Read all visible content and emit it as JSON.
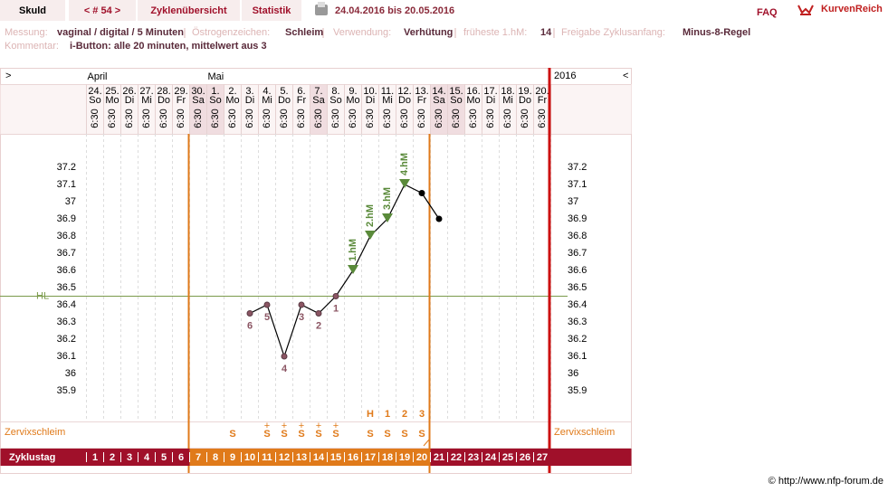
{
  "header": {
    "name": "Skuld",
    "cycle": "< # 54 >",
    "tabs": [
      "Zyklenübersicht",
      "Statistik"
    ],
    "date_range": "24.04.2016 bis 20.05.2016",
    "faq": "FAQ",
    "brand": "KurvenReich"
  },
  "info": {
    "fields": [
      {
        "label": "Messung:",
        "value": "vaginal / digital / 5 Minuten"
      },
      {
        "label": "Östrogenzeichen:",
        "value": "Schleim"
      },
      {
        "label": "Verwendung:",
        "value": "Verhütung"
      },
      {
        "label": "früheste 1.hM:",
        "value": "14"
      },
      {
        "label": "Freigabe Zyklusanfang:",
        "value": "Minus-8-Regel"
      }
    ],
    "comment": {
      "label": "Kommentar:",
      "value": "i-Button: alle 20 minuten, mittelwert aus 3"
    }
  },
  "chart_data": {
    "type": "line",
    "nav": [
      ">",
      "<"
    ],
    "year": "2016",
    "months": [
      "April",
      null,
      null,
      null,
      null,
      null,
      null,
      "Mai",
      null,
      null,
      null,
      null,
      null,
      null,
      null,
      null,
      null,
      null,
      null,
      null,
      null,
      null,
      null,
      null,
      null,
      null,
      null
    ],
    "categories": [
      "24.",
      "25.",
      "26.",
      "27.",
      "28.",
      "29.",
      "30.",
      "1.",
      "2.",
      "3.",
      "4.",
      "5.",
      "6.",
      "7.",
      "8.",
      "9.",
      "10.",
      "11.",
      "12.",
      "13.",
      "14.",
      "15.",
      "16.",
      "17.",
      "18.",
      "19.",
      "20."
    ],
    "weekdays": [
      "So",
      "Mo",
      "Di",
      "Mi",
      "Do",
      "Fr",
      "Sa",
      "So",
      "Mo",
      "Di",
      "Mi",
      "Do",
      "Fr",
      "Sa",
      "So",
      "Mo",
      "Di",
      "Mi",
      "Do",
      "Fr",
      "Sa",
      "So",
      "Mo",
      "Di",
      "Mi",
      "Do",
      "Fr"
    ],
    "times": [
      "6:30",
      "6:30",
      "6:30",
      "6:30",
      "6:30",
      "6:30",
      "6:30",
      "6:30",
      "6:30",
      "6:30",
      "6:30",
      "6:30",
      "6:30",
      "6:30",
      "6:30",
      "6:30",
      "6:30",
      "6:30",
      "6:30",
      "6:30",
      "6:30",
      "6:30",
      "6:30",
      "6:30",
      "6:30",
      "6:30",
      "6:30"
    ],
    "series": [
      {
        "color": "#000000",
        "values": [
          null,
          null,
          null,
          null,
          null,
          null,
          null,
          null,
          null,
          36.35,
          36.4,
          36.1,
          36.4,
          36.35,
          36.45,
          36.6,
          36.8,
          36.9,
          37.1,
          37.05,
          36.9,
          null,
          null,
          null,
          null,
          null,
          null
        ],
        "markers": [
          null,
          null,
          null,
          null,
          null,
          null,
          null,
          null,
          null,
          "circle",
          "circle",
          "circle",
          "circle",
          "circle",
          "circle",
          "triangle",
          "triangle",
          "triangle",
          "triangle",
          "dot",
          "dot",
          null,
          null,
          null,
          null,
          null,
          null
        ],
        "point_labels": [
          null,
          null,
          null,
          null,
          null,
          null,
          null,
          null,
          null,
          "6",
          "5",
          "4",
          "3",
          "2",
          "1",
          "1.hM",
          "2.hM",
          "3.hM",
          "4.hM",
          null,
          null,
          null,
          null,
          null,
          null,
          null,
          null
        ]
      }
    ],
    "marker_colors": {
      "circle": "#8b5563",
      "triangle": "#5a8a3a",
      "dot": "#000000"
    },
    "ylim": [
      35.8,
      37.3
    ],
    "yticks": [
      35.9,
      36,
      36.1,
      36.2,
      36.3,
      36.4,
      36.5,
      36.6,
      36.7,
      36.8,
      36.9,
      37,
      37.1,
      37.2
    ],
    "hl": {
      "label": "HL",
      "value": 36.45,
      "color": "#7a9a4a"
    },
    "mucus_label": "Zervixschleim",
    "mucus": [
      null,
      null,
      null,
      null,
      null,
      null,
      null,
      null,
      "S",
      null,
      "S",
      "S",
      "S",
      "S",
      "S",
      null,
      "S",
      "S",
      "S",
      "S",
      null,
      null,
      null,
      null,
      null,
      null,
      null
    ],
    "mucus_top": [
      null,
      null,
      null,
      null,
      null,
      null,
      null,
      null,
      null,
      null,
      "+",
      "+",
      "+",
      "+",
      "+",
      null,
      null,
      null,
      null,
      null,
      null,
      null,
      null,
      null,
      null,
      null,
      null
    ],
    "peak_count": [
      null,
      null,
      null,
      null,
      null,
      null,
      null,
      null,
      null,
      null,
      null,
      null,
      null,
      null,
      null,
      null,
      "H",
      "1",
      "2",
      "3",
      null,
      null,
      null,
      null,
      null,
      null,
      null
    ],
    "cycle_label": "Zyklustag",
    "cycle_days": [
      1,
      2,
      3,
      4,
      5,
      6,
      7,
      8,
      9,
      10,
      11,
      12,
      13,
      14,
      15,
      16,
      17,
      18,
      19,
      20,
      21,
      22,
      23,
      24,
      25,
      26,
      27
    ]
  },
  "footer": "© http://www.nfp-forum.de"
}
